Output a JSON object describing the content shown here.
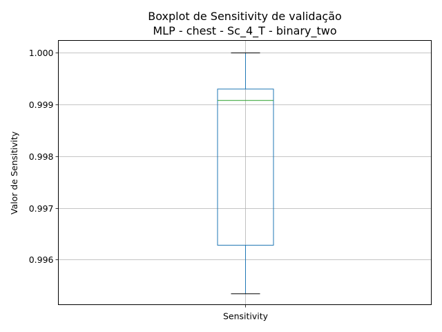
{
  "chart_data": {
    "type": "boxplot",
    "title": "Boxplot de Sensitivity de validação",
    "subtitle": "MLP - chest - Sc_4_T - binary_two",
    "xlabel": "",
    "ylabel": "Valor de Sensitivity",
    "categories": [
      "Sensitivity"
    ],
    "boxes": [
      {
        "whisker_low": 0.99534,
        "q1": 0.99628,
        "median": 0.99908,
        "q3": 0.9993,
        "whisker_high": 1.0
      }
    ],
    "ylim": [
      0.99513,
      1.00024
    ],
    "yticks": [
      0.996,
      0.997,
      0.998,
      0.999,
      1.0
    ],
    "ytick_labels": [
      "0.996",
      "0.997",
      "0.998",
      "0.999",
      "1.000"
    ],
    "grid": true,
    "colors": {
      "box": "#1f77b4",
      "median": "#2ca02c",
      "whisker_cap": "#000000",
      "grid": "#b0b0b0",
      "axis": "#000000"
    }
  }
}
